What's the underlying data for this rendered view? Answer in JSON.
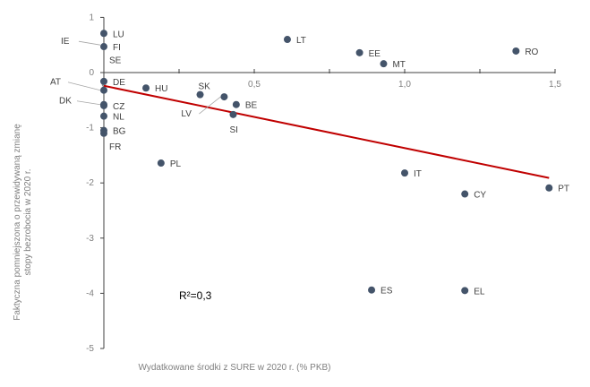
{
  "chart_data": {
    "type": "scatter",
    "xlabel": "Wydatkowane środki z SURE w 2020 r. (% PKB)",
    "ylabel": [
      "Faktyczna pomniejszona o przewidywaną zmianę",
      "stopy bezrobocia w 2020 r."
    ],
    "xlim": [
      0,
      1.5
    ],
    "ylim": [
      -5,
      1
    ],
    "x_ticks": [
      0,
      0.5,
      1.0,
      1.5
    ],
    "x_tick_labels": [
      "0",
      "0,5",
      "1,0",
      "1,5"
    ],
    "x_minor_step": 0.25,
    "y_ticks": [
      1,
      0,
      -1,
      -2,
      -3,
      -4,
      -5
    ],
    "y_tick_labels": [
      "1",
      "0",
      "-1",
      "-2",
      "-3",
      "-4",
      "-5"
    ],
    "annotation": "R²=0,3",
    "marker_color": "#44546a",
    "trend_color": "#c00000",
    "trendline": {
      "x": [
        0,
        1.48
      ],
      "y": [
        -0.24,
        -1.91
      ]
    },
    "points": [
      {
        "label": "LU",
        "x": 0,
        "y": 0.71
      },
      {
        "label": "IE",
        "x": 0,
        "y": 0.5
      },
      {
        "label": "FI",
        "x": 0,
        "y": 0.47
      },
      {
        "label": "SE",
        "x": 0,
        "y": 0.45
      },
      {
        "label": "DE",
        "x": 0,
        "y": -0.16
      },
      {
        "label": "AT",
        "x": 0,
        "y": -0.32
      },
      {
        "label": "DK",
        "x": 0,
        "y": -0.58
      },
      {
        "label": "CZ",
        "x": 0,
        "y": -0.6
      },
      {
        "label": "NL",
        "x": 0,
        "y": -0.79
      },
      {
        "label": "BG",
        "x": 0,
        "y": -1.05
      },
      {
        "label": "FR",
        "x": 0,
        "y": -1.1
      },
      {
        "label": "HU",
        "x": 0.14,
        "y": -0.28
      },
      {
        "label": "SK",
        "x": 0.32,
        "y": -0.4
      },
      {
        "label": "LV",
        "x": 0.4,
        "y": -0.44
      },
      {
        "label": "BE",
        "x": 0.44,
        "y": -0.58
      },
      {
        "label": "SI",
        "x": 0.43,
        "y": -0.76
      },
      {
        "label": "PL",
        "x": 0.19,
        "y": -1.64
      },
      {
        "label": "LT",
        "x": 0.61,
        "y": 0.6
      },
      {
        "label": "EE",
        "x": 0.85,
        "y": 0.36
      },
      {
        "label": "MT",
        "x": 0.93,
        "y": 0.16
      },
      {
        "label": "RO",
        "x": 1.37,
        "y": 0.39
      },
      {
        "label": "IT",
        "x": 1.0,
        "y": -1.82
      },
      {
        "label": "CY",
        "x": 1.2,
        "y": -2.2
      },
      {
        "label": "PT",
        "x": 1.48,
        "y": -2.09
      },
      {
        "label": "ES",
        "x": 0.89,
        "y": -3.94
      },
      {
        "label": "EL",
        "x": 1.2,
        "y": -3.95
      }
    ]
  }
}
